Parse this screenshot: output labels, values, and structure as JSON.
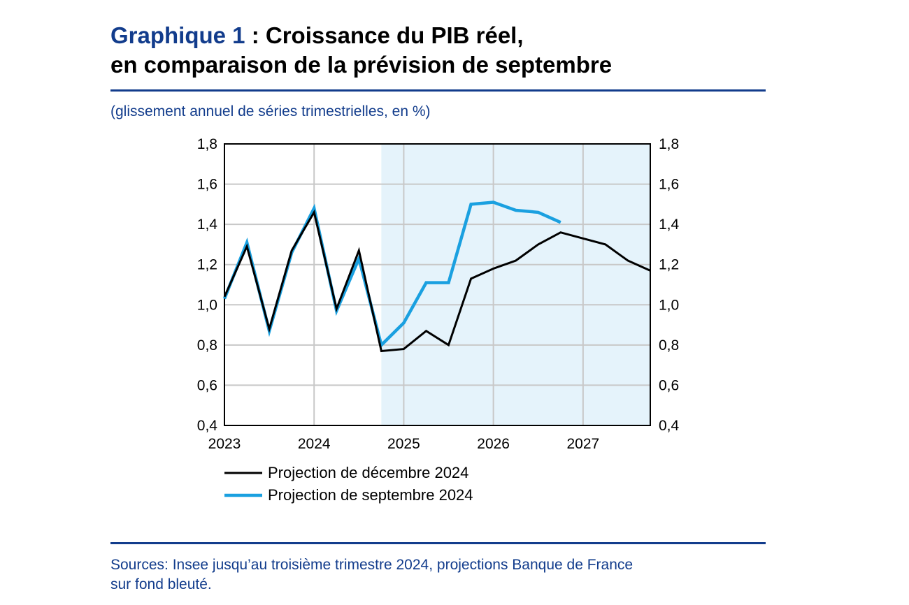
{
  "header": {
    "title_lead": "Graphique 1",
    "title_rest_1": " : Croissance du PIB réel,",
    "title_rest_2": "en comparaison de la prévision de septembre",
    "subtitle": "(glissement annuel de séries trimestrielles, en %)"
  },
  "footer": {
    "sources_line1": "Sources: Insee jusqu’au troisième trimestre 2024, projections Banque de France",
    "sources_line2": "sur fond bleuté."
  },
  "colors": {
    "accent": "#123c8c",
    "projection_band": "#e5f3fb",
    "series_december": "#000000",
    "series_september": "#1aa0e0",
    "grid": "#c8c8c8"
  },
  "chart_data": {
    "type": "line",
    "x_tick_labels": [
      "2023",
      "2024",
      "2025",
      "2026",
      "2027"
    ],
    "y_tick_labels": [
      "0,4",
      "0,6",
      "0,8",
      "1,0",
      "1,2",
      "1,4",
      "1,6",
      "1,8"
    ],
    "ylim": [
      0.4,
      1.8
    ],
    "xlim": [
      2023.0,
      2027.75
    ],
    "grid": true,
    "secondary_y_axis": true,
    "legend_position": "bottom-left",
    "projection_shading_from": 2024.75,
    "series": [
      {
        "name": "Projection de décembre 2024",
        "color": "#000000",
        "x": [
          2023.0,
          2023.25,
          2023.5,
          2023.75,
          2024.0,
          2024.25,
          2024.5,
          2024.75,
          2025.0,
          2025.25,
          2025.5,
          2025.75,
          2026.0,
          2026.25,
          2026.5,
          2026.75,
          2027.0,
          2027.25,
          2027.5,
          2027.75
        ],
        "y": [
          1.04,
          1.29,
          0.88,
          1.27,
          1.46,
          0.98,
          1.27,
          0.77,
          0.78,
          0.87,
          0.8,
          1.13,
          1.18,
          1.22,
          1.3,
          1.36,
          1.33,
          1.3,
          1.22,
          1.17
        ]
      },
      {
        "name": "Projection de septembre 2024",
        "color": "#1aa0e0",
        "x": [
          2023.0,
          2023.25,
          2023.5,
          2023.75,
          2024.0,
          2024.25,
          2024.5,
          2024.75,
          2025.0,
          2025.25,
          2025.5,
          2025.75,
          2026.0,
          2026.25,
          2026.5,
          2026.75
        ],
        "y": [
          1.03,
          1.31,
          0.87,
          1.26,
          1.48,
          0.97,
          1.23,
          0.8,
          0.91,
          1.11,
          1.11,
          1.5,
          1.51,
          1.47,
          1.46,
          1.41
        ]
      }
    ]
  }
}
